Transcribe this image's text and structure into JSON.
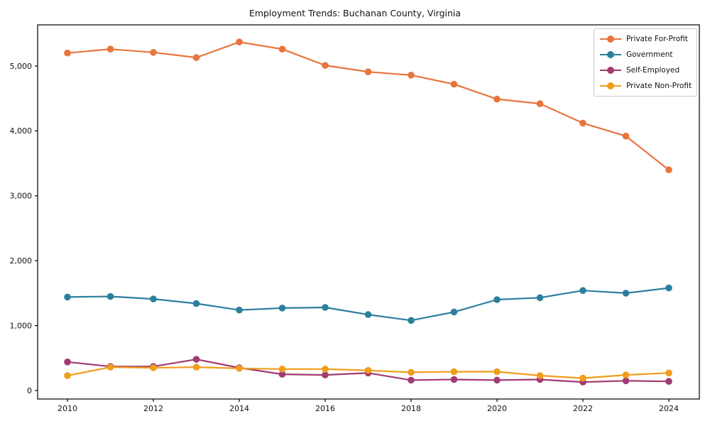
{
  "figure": {
    "title": "Employment Trends: Buchanan County, Virginia"
  },
  "chart_data": {
    "type": "line",
    "title": "Employment Trends: Buchanan County, Virginia",
    "xlabel": "",
    "ylabel": "",
    "grid": false,
    "legend_position": "upper right",
    "x": [
      2010,
      2011,
      2012,
      2013,
      2014,
      2015,
      2016,
      2017,
      2018,
      2019,
      2020,
      2021,
      2022,
      2023,
      2024
    ],
    "xtick_labels": [
      "2010",
      "2012",
      "2014",
      "2016",
      "2018",
      "2020",
      "2022",
      "2024"
    ],
    "xticks": [
      2010,
      2012,
      2014,
      2016,
      2018,
      2020,
      2022,
      2024
    ],
    "ylim": [
      -130,
      5640
    ],
    "yticks": [
      0,
      1000,
      2000,
      3000,
      4000,
      5000
    ],
    "ytick_labels": [
      "0",
      "1,000",
      "2,000",
      "3,000",
      "4,000",
      "5,000"
    ],
    "series": [
      {
        "name": "Private For-Profit",
        "color": "#e8753c",
        "values": [
          5200,
          5260,
          5210,
          5130,
          5370,
          5260,
          5010,
          4910,
          4860,
          4720,
          4490,
          4420,
          4120,
          3920,
          3400
        ]
      },
      {
        "name": "Government",
        "color": "#2d7f9e",
        "values": [
          1440,
          1450,
          1410,
          1340,
          1240,
          1270,
          1280,
          1170,
          1080,
          1210,
          1400,
          1430,
          1540,
          1500,
          1580
        ]
      },
      {
        "name": "Self-Employed",
        "color": "#a23b72",
        "values": [
          440,
          370,
          370,
          480,
          350,
          250,
          240,
          270,
          160,
          170,
          160,
          170,
          130,
          150,
          140
        ]
      },
      {
        "name": "Private Non-Profit",
        "color": "#f09d1c",
        "values": [
          230,
          360,
          350,
          360,
          340,
          330,
          330,
          310,
          280,
          290,
          290,
          230,
          190,
          240,
          270
        ]
      }
    ]
  }
}
